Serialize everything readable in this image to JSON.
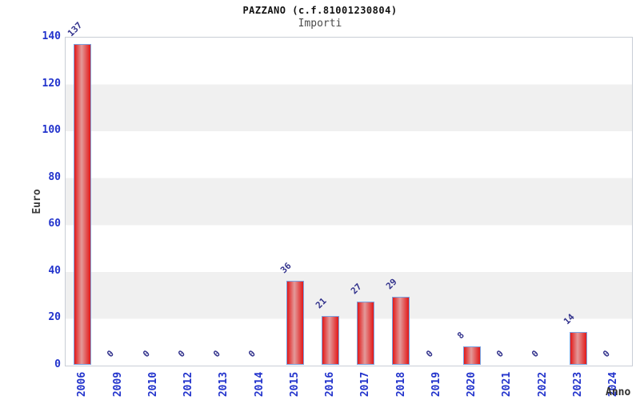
{
  "header": {
    "title": "PAZZANO (c.f.81001230804)",
    "subtitle": "Importi"
  },
  "chart_data": {
    "type": "bar",
    "title": "PAZZANO (c.f.81001230804)",
    "subtitle": "Importi",
    "xlabel": "Anno",
    "ylabel": "Euro",
    "categories": [
      "2006",
      "2009",
      "2010",
      "2012",
      "2013",
      "2014",
      "2015",
      "2016",
      "2017",
      "2018",
      "2019",
      "2020",
      "2021",
      "2022",
      "2023",
      "2024"
    ],
    "values": [
      137,
      0,
      0,
      0,
      0,
      0,
      36,
      21,
      27,
      29,
      0,
      8,
      0,
      0,
      14,
      0
    ],
    "ylim": [
      0,
      140
    ],
    "ytick_step": 20,
    "yticks": [
      0,
      20,
      40,
      60,
      80,
      100,
      120,
      140
    ],
    "grid": "alternating-horizontal-bands",
    "legend": "none",
    "value_labels_rotation_deg": -45,
    "x_labels_rotation_deg": -90,
    "colors": {
      "bar_fill_edge": "#e21818",
      "bar_fill_center": "#e39a9a",
      "bar_border": "#7aa2e0",
      "tick_label": "#2233cc",
      "value_label": "#32328c",
      "band_gray": "#f0f0f0",
      "band_white": "#ffffff",
      "plot_border": "#c9ced6",
      "title_color": "#111111",
      "subtitle_color": "#4a4a4a",
      "axis_title_color": "#3c3c3c"
    }
  }
}
